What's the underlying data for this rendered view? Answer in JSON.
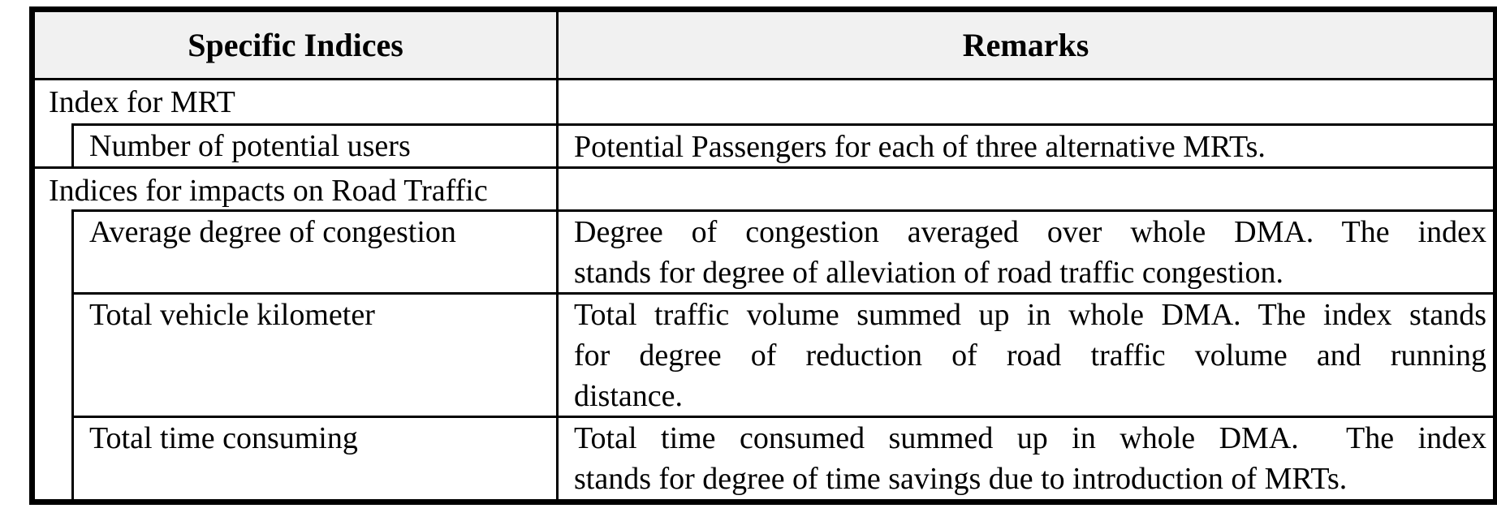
{
  "table": {
    "header": {
      "specific_indices": "Specific Indices",
      "remarks": "Remarks"
    },
    "rows": [
      {
        "type": "group",
        "label": "Index for MRT",
        "remark_lines": []
      },
      {
        "type": "sub",
        "label": "Number of potential users",
        "remark_lines": [
          "Potential Passengers for each of three alternative MRTs."
        ]
      },
      {
        "type": "group",
        "label": "Indices for impacts on Road Traffic",
        "remark_lines": []
      },
      {
        "type": "sub",
        "label": "Average degree of congestion",
        "remark_lines": [
          "Degree of congestion averaged over whole DMA. The index",
          "stands for degree of alleviation of road traffic congestion."
        ]
      },
      {
        "type": "sub",
        "label": "Total vehicle kilometer",
        "remark_lines": [
          "Total traffic volume summed up in whole DMA. The index stands",
          "for degree of reduction of road traffic volume and running",
          "distance."
        ]
      },
      {
        "type": "sub",
        "label": "Total time consuming",
        "remark_lines": [
          "Total time consumed summed up in whole DMA.  The index",
          "stands for degree of time savings due to introduction of MRTs."
        ]
      }
    ],
    "colors": {
      "header_bg": "#f1f1f1",
      "border": "#000000",
      "text": "#000000",
      "page_bg": "#ffffff"
    }
  }
}
